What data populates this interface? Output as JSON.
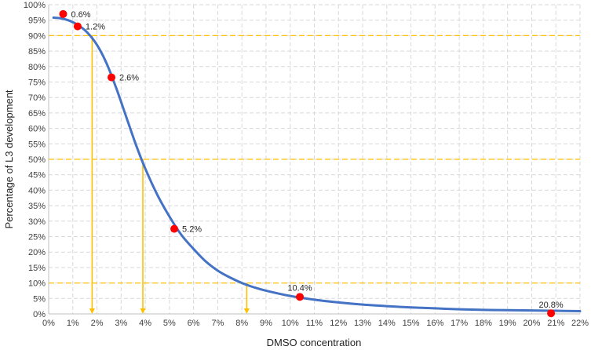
{
  "chart_data": {
    "type": "line",
    "title": "",
    "xlabel": "DMSO concentration",
    "ylabel": "Percentage of L3 development",
    "xlim": [
      0,
      22
    ],
    "ylim": [
      0,
      100
    ],
    "grid": true,
    "x_ticks": [
      "0%",
      "1%",
      "2%",
      "3%",
      "4%",
      "5%",
      "6%",
      "7%",
      "8%",
      "9%",
      "10%",
      "11%",
      "12%",
      "13%",
      "14%",
      "15%",
      "16%",
      "17%",
      "18%",
      "19%",
      "20%",
      "21%",
      "22%"
    ],
    "y_ticks": [
      "0%",
      "5%",
      "10%",
      "15%",
      "20%",
      "25%",
      "30%",
      "35%",
      "40%",
      "45%",
      "50%",
      "55%",
      "60%",
      "65%",
      "70%",
      "75%",
      "80%",
      "85%",
      "90%",
      "95%",
      "100%"
    ],
    "series": [
      {
        "type": "line",
        "color": "#4472c4",
        "x": [
          0.2,
          0.5,
          0.8,
          1.2,
          1.6,
          2.0,
          2.4,
          2.8,
          3.2,
          3.6,
          4.0,
          4.5,
          5.0,
          5.5,
          6.0,
          6.5,
          7.0,
          7.5,
          8.0,
          8.5,
          9.0,
          10.0,
          11.0,
          12.0,
          13.0,
          14.0,
          15.0,
          16.0,
          17.0,
          18.0,
          19.0,
          20.0,
          21.0,
          22.0
        ],
        "y": [
          95.8,
          95.6,
          95.0,
          93.5,
          91.0,
          87.0,
          81.0,
          73.0,
          64.0,
          55.0,
          47.0,
          38.5,
          31.5,
          25.5,
          21.0,
          17.0,
          14.0,
          11.8,
          10.0,
          8.6,
          7.5,
          5.8,
          4.6,
          3.7,
          3.0,
          2.5,
          2.1,
          1.8,
          1.5,
          1.3,
          1.2,
          1.1,
          1.0,
          0.9
        ]
      },
      {
        "type": "scatter",
        "color": "#ff0000",
        "x": [
          0.6,
          1.2,
          2.6,
          5.2,
          10.4,
          20.8
        ],
        "y": [
          97,
          93,
          76.5,
          27.5,
          5.5,
          0.2
        ],
        "labels": [
          "0.6%",
          "1.2%",
          "2.6%",
          "5.2%",
          "10.4%",
          "20.8%"
        ]
      }
    ],
    "reference_lines": {
      "color": "#ffc000",
      "horizontal": [
        90,
        50,
        10
      ],
      "vertical": [
        {
          "x": 1.8,
          "from_y": 90
        },
        {
          "x": 3.9,
          "from_y": 50
        },
        {
          "x": 8.2,
          "from_y": 10
        }
      ]
    }
  }
}
